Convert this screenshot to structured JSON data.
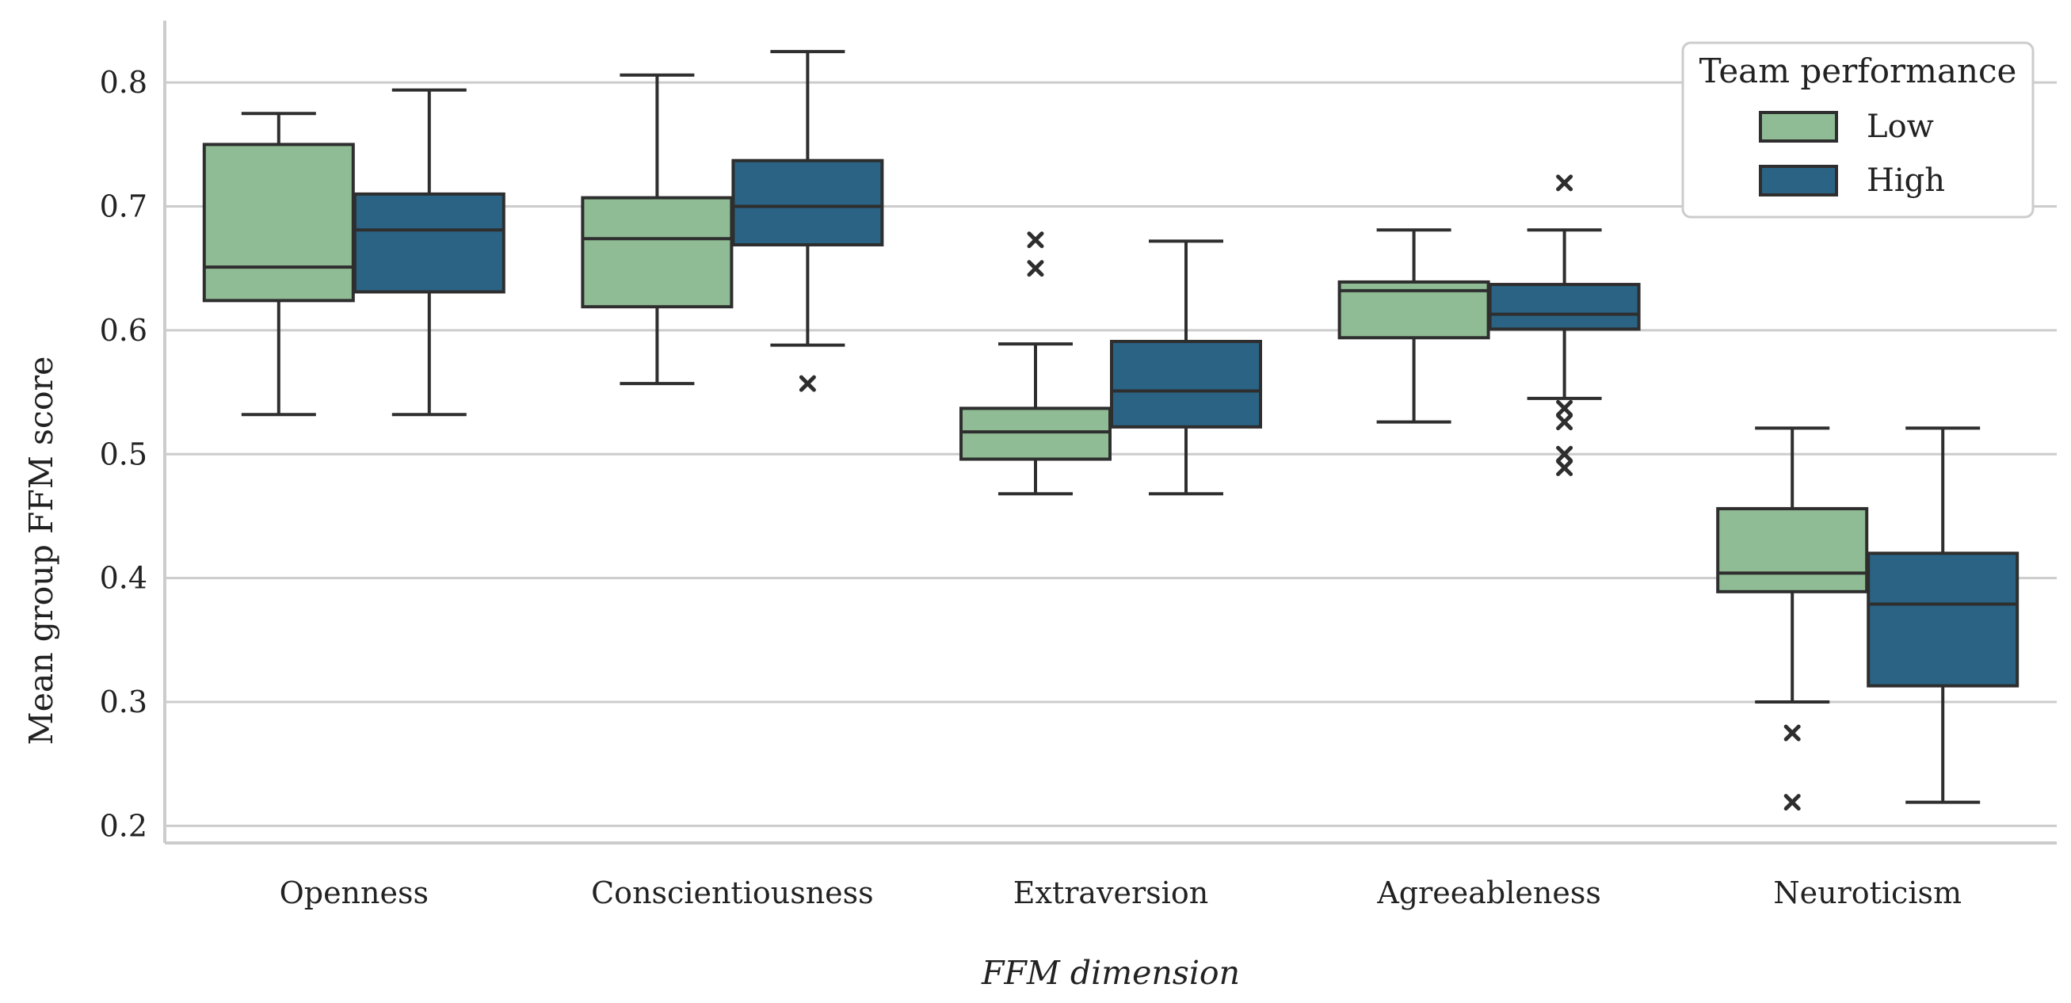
{
  "chart_data": {
    "type": "box",
    "title": "",
    "xlabel": "FFM dimension",
    "ylabel": "Mean group FFM score",
    "ylim": [
      0.19,
      0.85
    ],
    "yticks": [
      "0.2",
      "0.3",
      "0.4",
      "0.5",
      "0.6",
      "0.7",
      "0.8"
    ],
    "grid": "horizontal",
    "legend": {
      "title": "Team performance",
      "placement": "top-right"
    },
    "categories": [
      "Openness",
      "Conscientiousness",
      "Extraversion",
      "Agreeableness",
      "Neuroticism"
    ],
    "series": [
      {
        "name": "Low",
        "color": "#8fbc94",
        "boxes": [
          {
            "whisker_low": 0.532,
            "q1": 0.624,
            "median": 0.651,
            "q3": 0.75,
            "whisker_high": 0.775,
            "outliers": []
          },
          {
            "whisker_low": 0.557,
            "q1": 0.619,
            "median": 0.674,
            "q3": 0.707,
            "whisker_high": 0.806,
            "outliers": []
          },
          {
            "whisker_low": 0.468,
            "q1": 0.496,
            "median": 0.518,
            "q3": 0.537,
            "whisker_high": 0.589,
            "outliers": [
              0.65,
              0.673
            ]
          },
          {
            "whisker_low": 0.526,
            "q1": 0.594,
            "median": 0.632,
            "q3": 0.639,
            "whisker_high": 0.681,
            "outliers": []
          },
          {
            "whisker_low": 0.3,
            "q1": 0.389,
            "median": 0.404,
            "q3": 0.456,
            "whisker_high": 0.521,
            "outliers": [
              0.275,
              0.219
            ]
          }
        ]
      },
      {
        "name": "High",
        "color": "#2a6384",
        "boxes": [
          {
            "whisker_low": 0.532,
            "q1": 0.631,
            "median": 0.681,
            "q3": 0.71,
            "whisker_high": 0.794,
            "outliers": []
          },
          {
            "whisker_low": 0.588,
            "q1": 0.669,
            "median": 0.7,
            "q3": 0.737,
            "whisker_high": 0.825,
            "outliers": [
              0.557
            ]
          },
          {
            "whisker_low": 0.468,
            "q1": 0.522,
            "median": 0.551,
            "q3": 0.591,
            "whisker_high": 0.672,
            "outliers": []
          },
          {
            "whisker_low": 0.545,
            "q1": 0.601,
            "median": 0.613,
            "q3": 0.637,
            "whisker_high": 0.681,
            "outliers": [
              0.719,
              0.537,
              0.526,
              0.5,
              0.489
            ]
          },
          {
            "whisker_low": 0.219,
            "q1": 0.313,
            "median": 0.379,
            "q3": 0.42,
            "whisker_high": 0.521,
            "outliers": []
          }
        ]
      }
    ]
  },
  "colors": {
    "grid": "#cccccc",
    "axis": "#cccccc",
    "box_edge": "#2e2e2e",
    "legend_border": "#cccccc"
  }
}
